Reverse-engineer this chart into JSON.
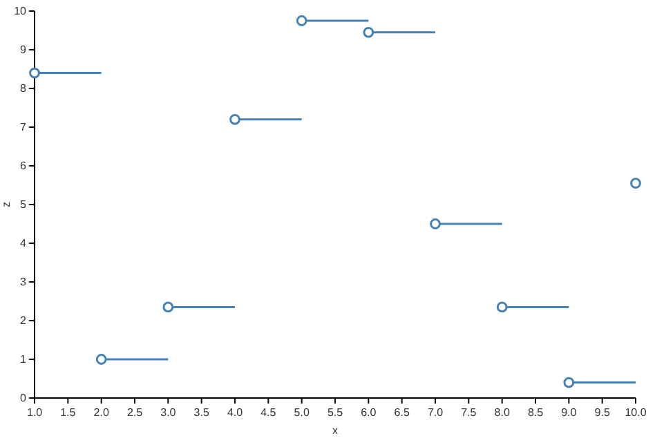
{
  "chart_data": {
    "type": "scatter",
    "xlabel": "x",
    "ylabel": "z",
    "x": [
      1,
      2,
      3,
      4,
      5,
      6,
      7,
      8,
      9,
      10
    ],
    "series": [
      {
        "color": "#4682b4",
        "values": [
          8.4,
          1.0,
          2.35,
          7.2,
          9.75,
          9.45,
          4.5,
          2.35,
          0.4,
          5.55
        ],
        "xerrors": [
          [
            1,
            2
          ],
          [
            2,
            3
          ],
          [
            3,
            4
          ],
          [
            4,
            5
          ],
          [
            5,
            6
          ],
          [
            6,
            7
          ],
          [
            7,
            8
          ],
          [
            8,
            9
          ],
          [
            9,
            10
          ],
          null
        ]
      }
    ],
    "xlim": [
      1,
      10
    ],
    "xticks": [
      {
        "value": 1,
        "label": "1.0"
      },
      {
        "value": 1.5,
        "label": "1.5"
      },
      {
        "value": 2,
        "label": "2.0"
      },
      {
        "value": 2.5,
        "label": "2.5"
      },
      {
        "value": 3,
        "label": "3.0"
      },
      {
        "value": 3.5,
        "label": "3.5"
      },
      {
        "value": 4,
        "label": "4.0"
      },
      {
        "value": 4.5,
        "label": "4.5"
      },
      {
        "value": 5,
        "label": "5.0"
      },
      {
        "value": 5.5,
        "label": "5.5"
      },
      {
        "value": 6,
        "label": "6.0"
      },
      {
        "value": 6.5,
        "label": "6.5"
      },
      {
        "value": 7,
        "label": "7.0"
      },
      {
        "value": 7.5,
        "label": "7.5"
      },
      {
        "value": 8,
        "label": "8.0"
      },
      {
        "value": 8.5,
        "label": "8.5"
      },
      {
        "value": 9,
        "label": "9.0"
      },
      {
        "value": 9.5,
        "label": "9.5"
      },
      {
        "value": 10,
        "label": "10.0"
      }
    ],
    "ylim": [
      0,
      10
    ],
    "yticks": [
      0,
      1,
      2,
      3,
      4,
      5,
      6,
      7,
      8,
      9,
      10
    ],
    "marker": "circle",
    "grid": false
  }
}
